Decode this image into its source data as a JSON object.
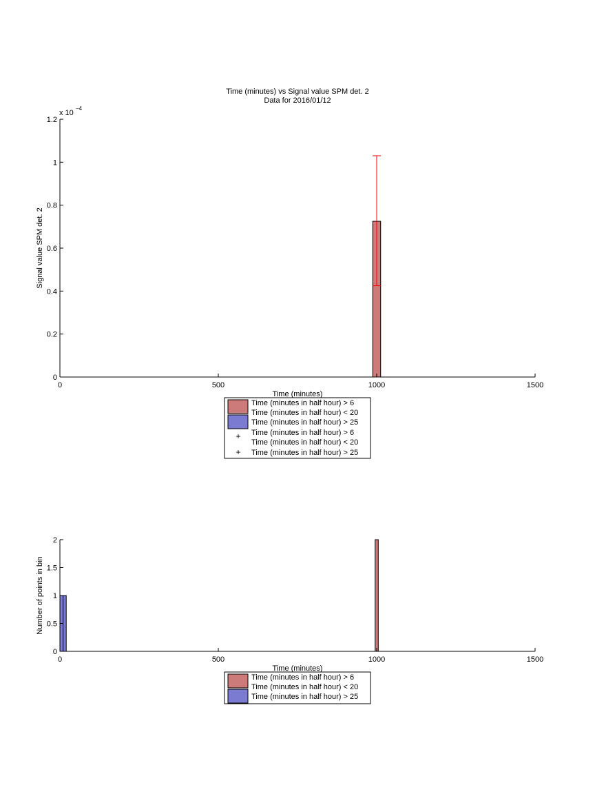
{
  "colors": {
    "red_bar": "#cc7a7a",
    "blue_bar": "#7b7bd1",
    "red_marker": "#ff0000",
    "blue_marker": "#00008b"
  },
  "chart_data": [
    {
      "type": "bar",
      "title": "Time (minutes) vs Signal value SPM det. 2",
      "subtitle": "Data for 2016/01/12",
      "xlabel": "Time (minutes)",
      "ylabel": "Signal value SPM det. 2",
      "exponent": "x 10",
      "exponent_power": "−4",
      "xlim": [
        0,
        1500
      ],
      "ylim": [
        0,
        1.2
      ],
      "x_ticks": [
        "0",
        "500",
        "1000",
        "1500"
      ],
      "y_ticks": [
        "0",
        "0.2",
        "0.4",
        "0.6",
        "0.8",
        "1",
        "1.2"
      ],
      "series": [
        {
          "label": "Time (minutes in half hour) > 6",
          "label2": "Time (minutes in half hour) < 20",
          "kind": "bar",
          "points": [
            {
              "x": 1000,
              "width": 25,
              "y": 0.725,
              "err_low": 0.425,
              "err_high": 1.03
            }
          ]
        },
        {
          "label": "Time (minutes in half hour) > 25",
          "kind": "bar",
          "points": []
        },
        {
          "label": "Time (minutes in half hour) > 6",
          "label2": "Time (minutes in half hour) < 20",
          "kind": "marker",
          "marker": "+"
        },
        {
          "label": "Time (minutes in half hour) > 25",
          "kind": "marker",
          "marker": "+"
        }
      ],
      "legend": "below"
    },
    {
      "type": "bar",
      "xlabel": "Time (minutes)",
      "ylabel": "Number of points in bin",
      "xlim": [
        0,
        1500
      ],
      "ylim": [
        0,
        2
      ],
      "x_ticks": [
        "0",
        "500",
        "1000",
        "1500"
      ],
      "y_ticks": [
        "0",
        "0.5",
        "1",
        "1.5",
        "2"
      ],
      "series": [
        {
          "label": "Time (minutes in half hour) > 6",
          "label2": "Time (minutes in half hour) < 20",
          "bins": [
            {
              "x0": 995,
              "x1": 1005,
              "count": 2
            }
          ]
        },
        {
          "label": "Time (minutes in half hour) > 25",
          "bins": [
            {
              "x0": 0,
              "x1": 10,
              "count": 1
            },
            {
              "x0": 10,
              "x1": 20,
              "count": 1
            }
          ]
        }
      ],
      "legend": "below"
    }
  ]
}
